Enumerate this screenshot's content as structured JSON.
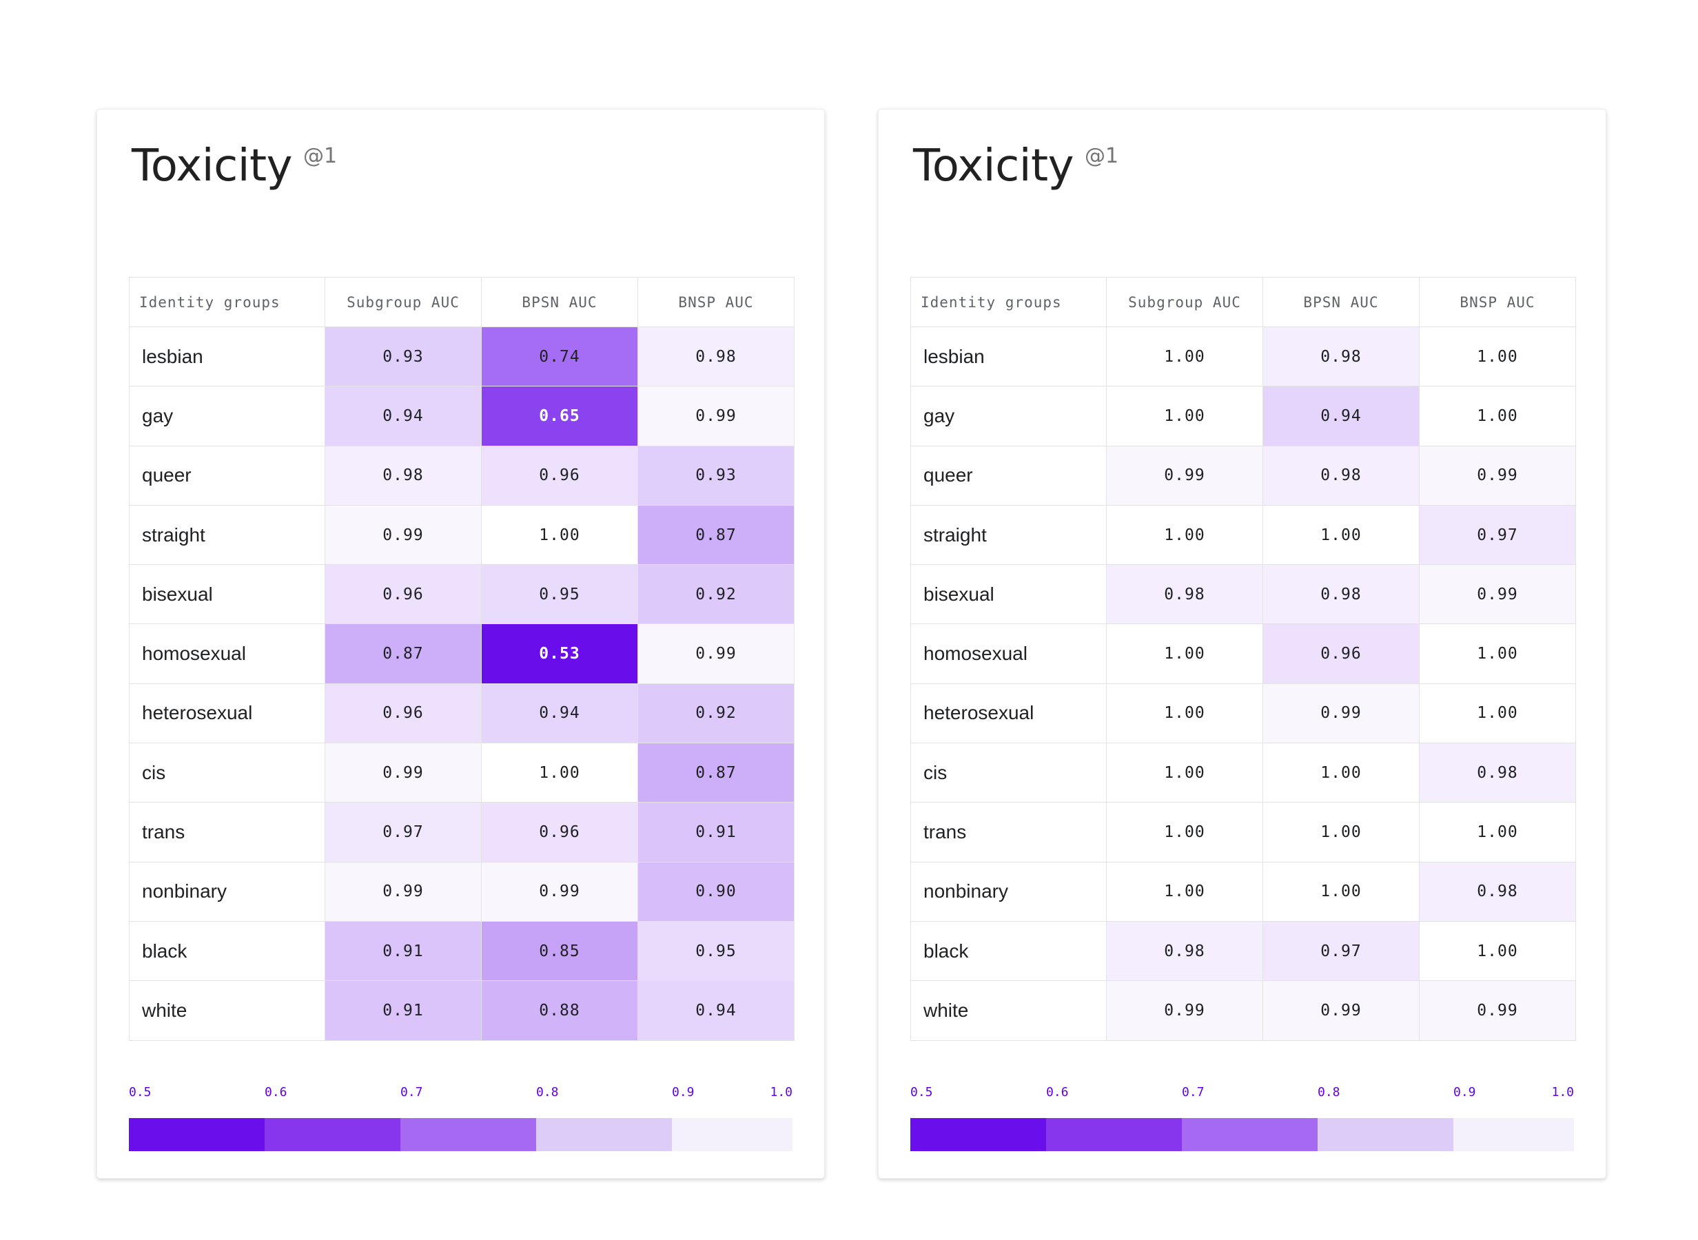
{
  "panels": [
    {
      "title": "Toxicity",
      "title_sup": "@1",
      "columns": [
        "Identity groups",
        "Subgroup AUC",
        "BPSN AUC",
        "BNSP AUC"
      ],
      "rows": [
        {
          "group": "lesbian",
          "values": [
            "0.93",
            "0.74",
            "0.98"
          ]
        },
        {
          "group": "gay",
          "values": [
            "0.94",
            "0.65",
            "0.99"
          ]
        },
        {
          "group": "queer",
          "values": [
            "0.98",
            "0.96",
            "0.93"
          ]
        },
        {
          "group": "straight",
          "values": [
            "0.99",
            "1.00",
            "0.87"
          ]
        },
        {
          "group": "bisexual",
          "values": [
            "0.96",
            "0.95",
            "0.92"
          ]
        },
        {
          "group": "homosexual",
          "values": [
            "0.87",
            "0.53",
            "0.99"
          ]
        },
        {
          "group": "heterosexual",
          "values": [
            "0.96",
            "0.94",
            "0.92"
          ]
        },
        {
          "group": "cis",
          "values": [
            "0.99",
            "1.00",
            "0.87"
          ]
        },
        {
          "group": "trans",
          "values": [
            "0.97",
            "0.96",
            "0.91"
          ]
        },
        {
          "group": "nonbinary",
          "values": [
            "0.99",
            "0.99",
            "0.90"
          ]
        },
        {
          "group": "black",
          "values": [
            "0.91",
            "0.85",
            "0.95"
          ]
        },
        {
          "group": "white",
          "values": [
            "0.91",
            "0.88",
            "0.94"
          ]
        }
      ],
      "legend_ticks": [
        "0.5",
        "0.6",
        "0.7",
        "0.8",
        "0.9",
        "1.0"
      ]
    },
    {
      "title": "Toxicity",
      "title_sup": "@1",
      "columns": [
        "Identity groups",
        "Subgroup AUC",
        "BPSN AUC",
        "BNSP AUC"
      ],
      "rows": [
        {
          "group": "lesbian",
          "values": [
            "1.00",
            "0.98",
            "1.00"
          ]
        },
        {
          "group": "gay",
          "values": [
            "1.00",
            "0.94",
            "1.00"
          ]
        },
        {
          "group": "queer",
          "values": [
            "0.99",
            "0.98",
            "0.99"
          ]
        },
        {
          "group": "straight",
          "values": [
            "1.00",
            "1.00",
            "0.97"
          ]
        },
        {
          "group": "bisexual",
          "values": [
            "0.98",
            "0.98",
            "0.99"
          ]
        },
        {
          "group": "homosexual",
          "values": [
            "1.00",
            "0.96",
            "1.00"
          ]
        },
        {
          "group": "heterosexual",
          "values": [
            "1.00",
            "0.99",
            "1.00"
          ]
        },
        {
          "group": "cis",
          "values": [
            "1.00",
            "1.00",
            "0.98"
          ]
        },
        {
          "group": "trans",
          "values": [
            "1.00",
            "1.00",
            "1.00"
          ]
        },
        {
          "group": "nonbinary",
          "values": [
            "1.00",
            "1.00",
            "0.98"
          ]
        },
        {
          "group": "black",
          "values": [
            "0.98",
            "0.97",
            "1.00"
          ]
        },
        {
          "group": "white",
          "values": [
            "0.99",
            "0.99",
            "0.99"
          ]
        }
      ],
      "legend_ticks": [
        "0.5",
        "0.6",
        "0.7",
        "0.8",
        "0.9",
        "1.0"
      ]
    }
  ],
  "colors": {
    "scale_low": "#6200ea",
    "scale_high": "#ffffff",
    "legend_segments": [
      "#6a0eeb",
      "#8736ee",
      "#a66af2",
      "#ddcbf8",
      "#f4f0fc"
    ],
    "tick_color": "#6200ea"
  },
  "chart_data": [
    {
      "type": "heatmap",
      "title": "Toxicity",
      "subtitle": "@1",
      "x": [
        "Subgroup AUC",
        "BPSN AUC",
        "BNSP AUC"
      ],
      "y": [
        "lesbian",
        "gay",
        "queer",
        "straight",
        "bisexual",
        "homosexual",
        "heterosexual",
        "cis",
        "trans",
        "nonbinary",
        "black",
        "white"
      ],
      "values": [
        [
          0.93,
          0.74,
          0.98
        ],
        [
          0.94,
          0.65,
          0.99
        ],
        [
          0.98,
          0.96,
          0.93
        ],
        [
          0.99,
          1.0,
          0.87
        ],
        [
          0.96,
          0.95,
          0.92
        ],
        [
          0.87,
          0.53,
          0.99
        ],
        [
          0.96,
          0.94,
          0.92
        ],
        [
          0.99,
          1.0,
          0.87
        ],
        [
          0.97,
          0.96,
          0.91
        ],
        [
          0.99,
          0.99,
          0.9
        ],
        [
          0.91,
          0.85,
          0.95
        ],
        [
          0.91,
          0.88,
          0.94
        ]
      ],
      "color_range": [
        0.5,
        1.0
      ]
    },
    {
      "type": "heatmap",
      "title": "Toxicity",
      "subtitle": "@1",
      "x": [
        "Subgroup AUC",
        "BPSN AUC",
        "BNSP AUC"
      ],
      "y": [
        "lesbian",
        "gay",
        "queer",
        "straight",
        "bisexual",
        "homosexual",
        "heterosexual",
        "cis",
        "trans",
        "nonbinary",
        "black",
        "white"
      ],
      "values": [
        [
          1.0,
          0.98,
          1.0
        ],
        [
          1.0,
          0.94,
          1.0
        ],
        [
          0.99,
          0.98,
          0.99
        ],
        [
          1.0,
          1.0,
          0.97
        ],
        [
          0.98,
          0.98,
          0.99
        ],
        [
          1.0,
          0.96,
          1.0
        ],
        [
          1.0,
          0.99,
          1.0
        ],
        [
          1.0,
          1.0,
          0.98
        ],
        [
          1.0,
          1.0,
          1.0
        ],
        [
          1.0,
          1.0,
          0.98
        ],
        [
          0.98,
          0.97,
          1.0
        ],
        [
          0.99,
          0.99,
          0.99
        ]
      ],
      "color_range": [
        0.5,
        1.0
      ]
    }
  ]
}
